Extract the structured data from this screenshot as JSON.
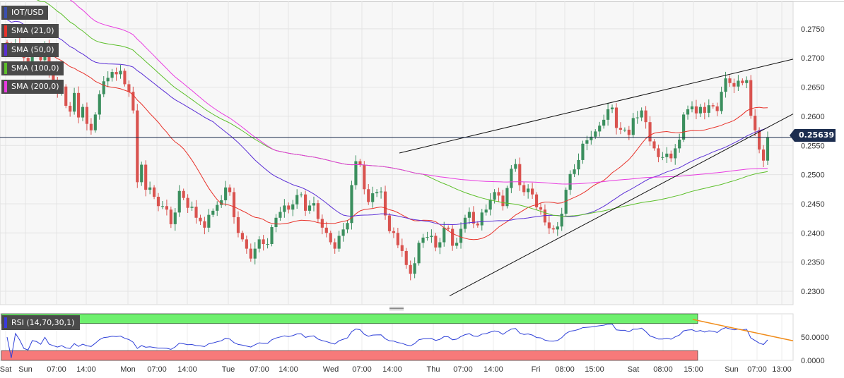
{
  "chart_data": {
    "type": "candlestick",
    "title": "IOT/USD",
    "current_price": 0.25639,
    "current_price_label": "0.25639",
    "ylim": [
      0.2277,
      0.2797
    ],
    "yticks": [
      0.23,
      0.235,
      0.24,
      0.245,
      0.25,
      0.255,
      0.26,
      0.265,
      0.27,
      0.275
    ],
    "ytick_labels": [
      "0.2300",
      "0.2350",
      "0.2400",
      "0.2450",
      "0.2500",
      "0.2550",
      "0.2600",
      "0.2650",
      "0.2700",
      "0.2750"
    ],
    "xtick_labels": [
      "Sat",
      "Sun",
      "07:00",
      "14:00",
      "Mon",
      "07:00",
      "14:00",
      "Tue",
      "07:00",
      "14:00",
      "Wed",
      "07:00",
      "14:00",
      "Thu",
      "07:00",
      "14:00",
      "Fri",
      "08:00",
      "15:00",
      "Sat",
      "08:00",
      "15:00",
      "Sun",
      "07:00",
      "13:00"
    ],
    "indicators": [
      {
        "name": "SMA (21,0)",
        "color": "#e8322a"
      },
      {
        "name": "SMA (50,0)",
        "color": "#5b2fd6"
      },
      {
        "name": "SMA (100,0)",
        "color": "#5cbf2a"
      },
      {
        "name": "SMA (200,0)",
        "color": "#e83ae0"
      }
    ],
    "candles_close": [
      0.2721,
      0.2713,
      0.2724,
      0.2718,
      0.27,
      0.2694,
      0.2711,
      0.2708,
      0.2696,
      0.272,
      0.2676,
      0.266,
      0.2643,
      0.2651,
      0.2618,
      0.2608,
      0.264,
      0.2598,
      0.2616,
      0.2587,
      0.2576,
      0.2603,
      0.2638,
      0.266,
      0.2666,
      0.2676,
      0.2672,
      0.2678,
      0.2655,
      0.2642,
      0.261,
      0.2487,
      0.2517,
      0.2474,
      0.2478,
      0.2462,
      0.2446,
      0.2446,
      0.244,
      0.2415,
      0.2435,
      0.2472,
      0.246,
      0.2443,
      0.2445,
      0.2426,
      0.242,
      0.2409,
      0.2431,
      0.2438,
      0.2448,
      0.2456,
      0.2478,
      0.247,
      0.2427,
      0.24,
      0.2389,
      0.2373,
      0.2356,
      0.2373,
      0.2389,
      0.2381,
      0.2381,
      0.241,
      0.2426,
      0.2436,
      0.2447,
      0.244,
      0.2449,
      0.2465,
      0.2466,
      0.2438,
      0.2447,
      0.2451,
      0.2424,
      0.2409,
      0.24,
      0.2384,
      0.2373,
      0.2395,
      0.2406,
      0.2417,
      0.2482,
      0.2523,
      0.2517,
      0.2475,
      0.2453,
      0.2468,
      0.247,
      0.2471,
      0.243,
      0.2403,
      0.24,
      0.2379,
      0.2369,
      0.2345,
      0.233,
      0.2348,
      0.2383,
      0.2392,
      0.2393,
      0.2395,
      0.2375,
      0.2384,
      0.2409,
      0.2407,
      0.2378,
      0.2383,
      0.2407,
      0.2426,
      0.2436,
      0.2416,
      0.2413,
      0.2435,
      0.244,
      0.2457,
      0.247,
      0.2464,
      0.2446,
      0.2477,
      0.251,
      0.2518,
      0.2482,
      0.247,
      0.2476,
      0.2466,
      0.2444,
      0.244,
      0.2418,
      0.2408,
      0.2406,
      0.2411,
      0.2433,
      0.2474,
      0.2501,
      0.2509,
      0.2525,
      0.2553,
      0.2559,
      0.2565,
      0.2574,
      0.2584,
      0.2594,
      0.2612,
      0.2615,
      0.258,
      0.2577,
      0.2577,
      0.2568,
      0.2597,
      0.2598,
      0.261,
      0.259,
      0.2557,
      0.2545,
      0.253,
      0.253,
      0.2536,
      0.2528,
      0.2545,
      0.256,
      0.2603,
      0.2612,
      0.2617,
      0.2605,
      0.2616,
      0.2606,
      0.2619,
      0.2617,
      0.2609,
      0.2642,
      0.2665,
      0.2657,
      0.2651,
      0.2661,
      0.2657,
      0.2662,
      0.2601,
      0.2576,
      0.2543,
      0.2524,
      0.25639
    ],
    "rsi": {
      "name": "RSI (14,70,30,1)",
      "ylim": [
        0,
        100
      ],
      "yticks": [
        0,
        50
      ],
      "ytick_labels": [
        "0.0000",
        "50.0000"
      ],
      "overbought": 70,
      "oversold": 30
    }
  }
}
